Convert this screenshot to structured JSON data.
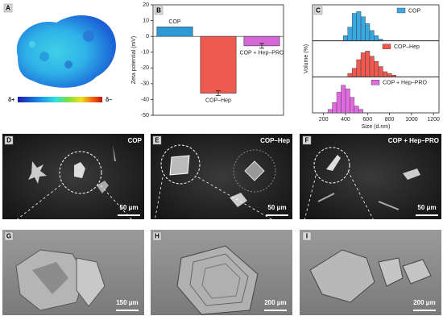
{
  "chart_data": [
    {
      "type": "bar",
      "panel_label": "B",
      "ylabel": "Zeta potential (mV)",
      "categories": [
        "COP",
        "COP–Hep",
        "COP + Hep–PRO"
      ],
      "values": [
        6,
        -36,
        -6
      ],
      "errors": [
        null,
        1.5,
        1.5
      ],
      "colors": [
        "#2d9ad6",
        "#ef5a50",
        "#d667d6"
      ],
      "ylim": [
        -50,
        20
      ],
      "yticks": [
        -50,
        -40,
        -30,
        -20,
        -10,
        0,
        10,
        20
      ]
    },
    {
      "type": "histogram",
      "panel_label": "C",
      "xlabel": "Size (d.nm)",
      "ylabel": "Volume (%)",
      "xlim": [
        100,
        1250
      ],
      "xticks": [
        200,
        400,
        600,
        800,
        1000,
        1200
      ],
      "ylim": [
        0,
        20
      ],
      "series": [
        {
          "name": "COP",
          "color": "#3aa8e0",
          "bins": [
            380,
            420,
            460,
            500,
            540,
            580,
            620,
            660,
            700,
            740
          ],
          "values": [
            3,
            8,
            16,
            17,
            14,
            10,
            6,
            3,
            1
          ]
        },
        {
          "name": "COP–Hep",
          "color": "#ef5a50",
          "bins": [
            420,
            460,
            500,
            540,
            580,
            620,
            660,
            700,
            740,
            780,
            820,
            860
          ],
          "values": [
            2,
            5,
            10,
            14,
            15,
            12,
            9,
            6,
            3,
            2,
            1
          ]
        },
        {
          "name": "COP + Hep–PRO",
          "color": "#e06be0",
          "bins": [
            240,
            280,
            320,
            360,
            400,
            440,
            480,
            520,
            560
          ],
          "values": [
            2,
            6,
            12,
            16,
            14,
            9,
            4,
            2
          ]
        }
      ]
    }
  ],
  "figure": {
    "panel_labels": [
      "A",
      "D",
      "E",
      "F",
      "G",
      "H",
      "I"
    ],
    "charge_scale": [
      "δ+",
      "δ−"
    ],
    "micrograph_titles": [
      "COP",
      "COP–Hep",
      "COP + Hep–PRO"
    ],
    "scale_bars": [
      "50 μm",
      "50 μm",
      "50 μm",
      "150 μm",
      "200 μm",
      "200 μm"
    ]
  }
}
